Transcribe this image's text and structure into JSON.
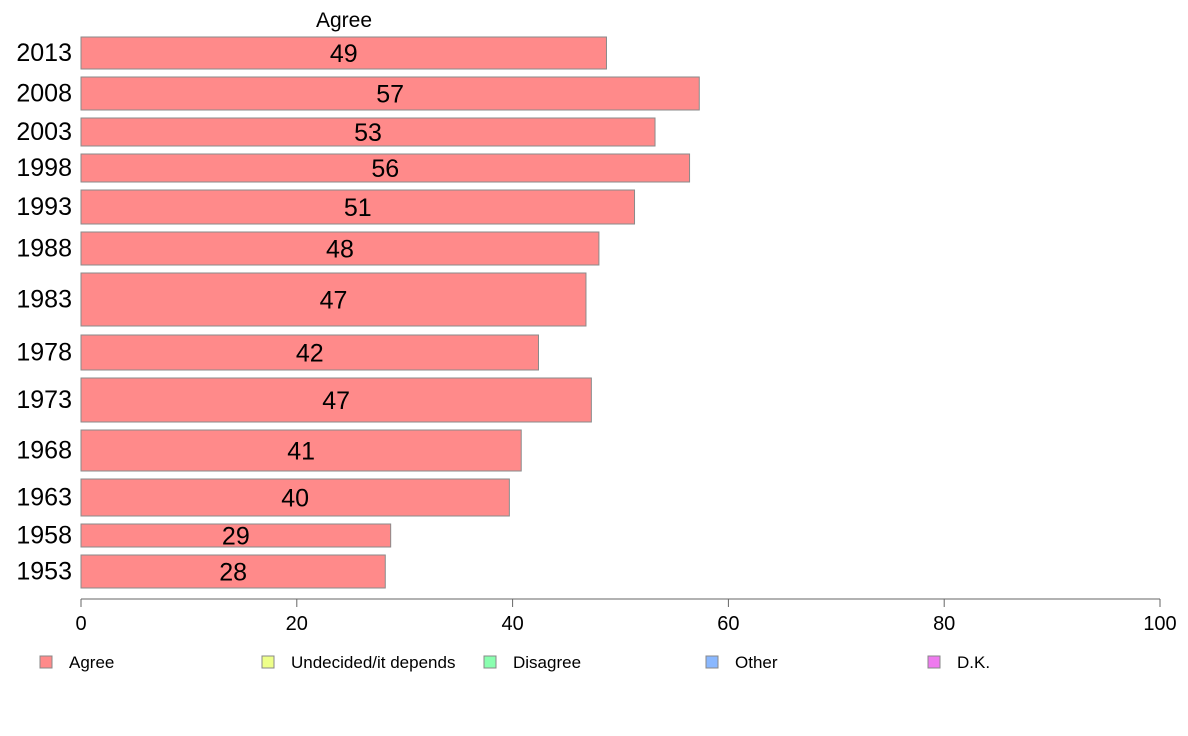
{
  "chart_data": {
    "type": "bar",
    "orientation": "horizontal",
    "facet_title": "Agree",
    "categories": [
      "2013",
      "2008",
      "2003",
      "1998",
      "1993",
      "1988",
      "1983",
      "1978",
      "1973",
      "1968",
      "1963",
      "1958",
      "1953"
    ],
    "series": [
      {
        "name": "Agree",
        "color": "#ff8a8a",
        "values": [
          48.7,
          57.3,
          53.2,
          56.4,
          51.3,
          48.0,
          46.8,
          42.4,
          47.3,
          40.8,
          39.7,
          28.7,
          28.2
        ],
        "labels": [
          "49",
          "57",
          "53",
          "56",
          "51",
          "48",
          "47",
          "42",
          "47",
          "41",
          "40",
          "29",
          "28"
        ]
      }
    ],
    "xlim": [
      0,
      100
    ],
    "xticks": [
      "0",
      "20",
      "40",
      "60",
      "80",
      "100"
    ],
    "grid": false,
    "legend": {
      "position": "bottom",
      "items": [
        {
          "label": "Agree",
          "color": "#ff8a8a"
        },
        {
          "label": "Undecided/it depends",
          "color": "#eeff8a"
        },
        {
          "label": "Disagree",
          "color": "#8affb0"
        },
        {
          "label": "Other",
          "color": "#8ab8ff"
        },
        {
          "label": "D.K.",
          "color": "#ee7aee"
        }
      ]
    }
  }
}
